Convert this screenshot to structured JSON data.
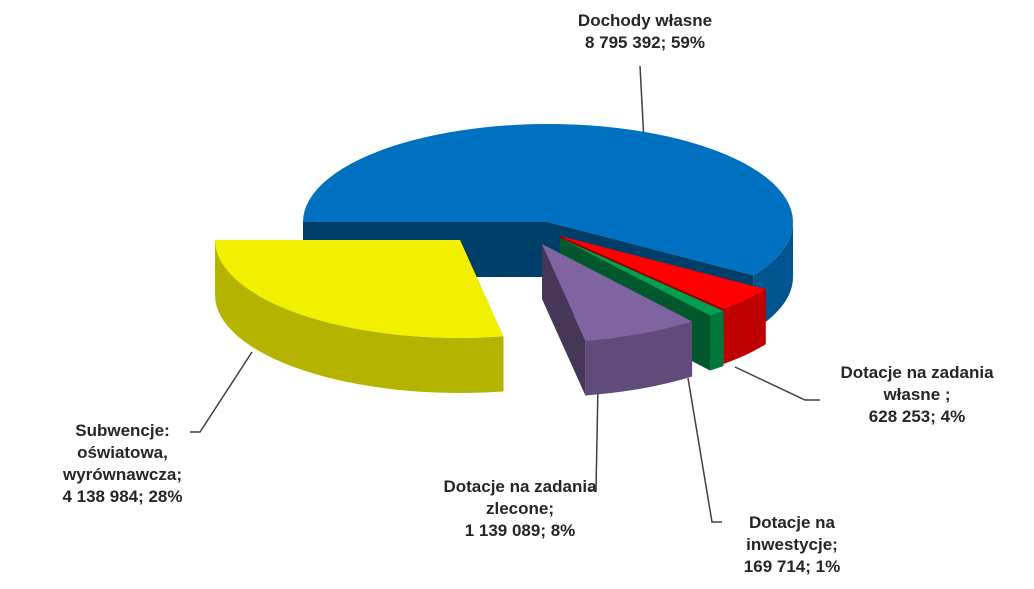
{
  "chart_data": {
    "type": "pie3d",
    "categories": [
      "Dochody własne",
      "Dotacje na zadania własne ;",
      "Dotacje na inwestycje;",
      "Dotacje na zadania zlecone;",
      "Subwencje: oświatowa, wyrównawcza;"
    ],
    "values": [
      8795392,
      628253,
      169714,
      1139089,
      4138984
    ],
    "value_labels": [
      "8 795 392; 59%",
      "628 253; 4%",
      "169 714; 1%",
      "1 139 089; 8%",
      "4 138 984; 28%"
    ],
    "colors": [
      "#0070c0",
      "#ff0000",
      "#00a050",
      "#8064a2",
      "#f0f000"
    ]
  }
}
